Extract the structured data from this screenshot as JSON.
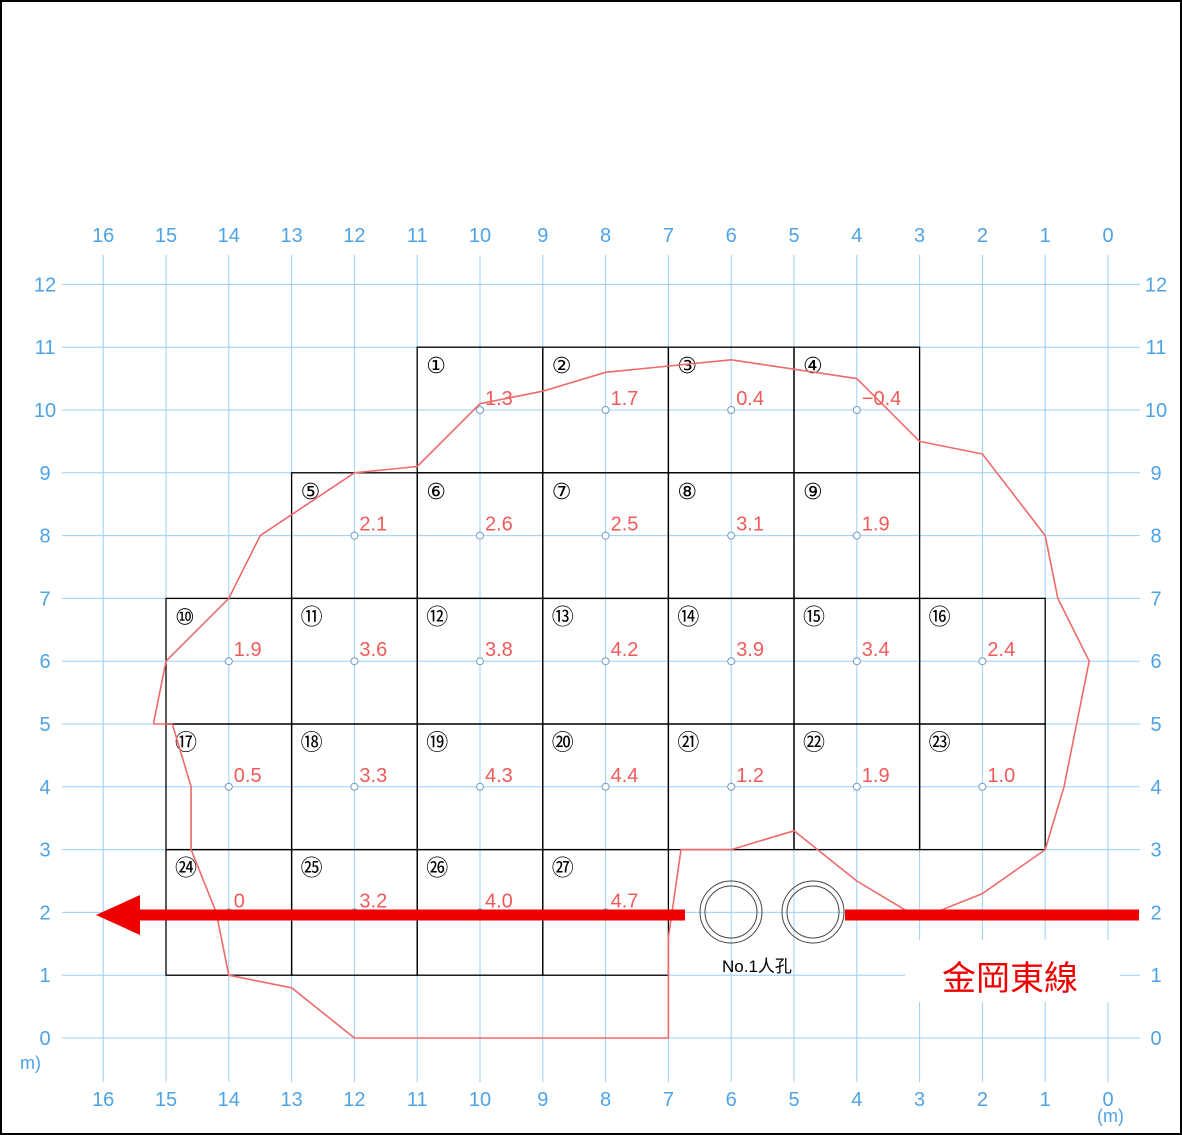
{
  "diagram": {
    "x_ticks": [
      "16",
      "15",
      "14",
      "13",
      "12",
      "11",
      "10",
      "9",
      "8",
      "7",
      "6",
      "5",
      "4",
      "3",
      "2",
      "1",
      "0"
    ],
    "y_ticks": [
      "12",
      "11",
      "10",
      "9",
      "8",
      "7",
      "6",
      "5",
      "4",
      "3",
      "2",
      "1",
      "0"
    ],
    "unit_left": "m)",
    "unit_right": "(m)",
    "cells": [
      {
        "label": "①",
        "value": "1.3",
        "gx": 11,
        "gy": 11
      },
      {
        "label": "②",
        "value": "1.7",
        "gx": 9,
        "gy": 11
      },
      {
        "label": "③",
        "value": "0.4",
        "gx": 7,
        "gy": 11
      },
      {
        "label": "④",
        "value": "−0.4",
        "gx": 5,
        "gy": 11
      },
      {
        "label": "⑤",
        "value": "2.1",
        "gx": 13,
        "gy": 9
      },
      {
        "label": "⑥",
        "value": "2.6",
        "gx": 11,
        "gy": 9
      },
      {
        "label": "⑦",
        "value": "2.5",
        "gx": 9,
        "gy": 9
      },
      {
        "label": "⑧",
        "value": "3.1",
        "gx": 7,
        "gy": 9
      },
      {
        "label": "⑨",
        "value": "1.9",
        "gx": 5,
        "gy": 9
      },
      {
        "label": "⑩",
        "value": "1.9",
        "gx": 15,
        "gy": 7
      },
      {
        "label": "⑪",
        "value": "3.6",
        "gx": 13,
        "gy": 7
      },
      {
        "label": "⑫",
        "value": "3.8",
        "gx": 11,
        "gy": 7
      },
      {
        "label": "⑬",
        "value": "4.2",
        "gx": 9,
        "gy": 7
      },
      {
        "label": "⑭",
        "value": "3.9",
        "gx": 7,
        "gy": 7
      },
      {
        "label": "⑮",
        "value": "3.4",
        "gx": 5,
        "gy": 7
      },
      {
        "label": "⑯",
        "value": "2.4",
        "gx": 3,
        "gy": 7
      },
      {
        "label": "⑰",
        "value": "0.5",
        "gx": 15,
        "gy": 5
      },
      {
        "label": "⑱",
        "value": "3.3",
        "gx": 13,
        "gy": 5
      },
      {
        "label": "⑲",
        "value": "4.3",
        "gx": 11,
        "gy": 5
      },
      {
        "label": "⑳",
        "value": "4.4",
        "gx": 9,
        "gy": 5
      },
      {
        "label": "㉑",
        "value": "1.2",
        "gx": 7,
        "gy": 5
      },
      {
        "label": "㉒",
        "value": "1.9",
        "gx": 5,
        "gy": 5
      },
      {
        "label": "㉓",
        "value": "1.0",
        "gx": 3,
        "gy": 5
      },
      {
        "label": "㉔",
        "value": "0",
        "gx": 15,
        "gy": 3
      },
      {
        "label": "㉕",
        "value": "3.2",
        "gx": 13,
        "gy": 3
      },
      {
        "label": "㉖",
        "value": "4.0",
        "gx": 11,
        "gy": 3
      },
      {
        "label": "㉗",
        "value": "4.7",
        "gx": 9,
        "gy": 3
      }
    ],
    "outline_points": [
      [
        15.2,
        5
      ],
      [
        15,
        6
      ],
      [
        14,
        7
      ],
      [
        13.5,
        8
      ],
      [
        12,
        9
      ],
      [
        11,
        9.1
      ],
      [
        10,
        10.1
      ],
      [
        9,
        10.3
      ],
      [
        8,
        10.6
      ],
      [
        6,
        10.8
      ],
      [
        4,
        10.5
      ],
      [
        3,
        9.5
      ],
      [
        2,
        9.3
      ],
      [
        1,
        8
      ],
      [
        0.8,
        7
      ],
      [
        0.3,
        6
      ],
      [
        0.5,
        5
      ],
      [
        0.7,
        4
      ],
      [
        1,
        3
      ],
      [
        2,
        2.3
      ],
      [
        3,
        1.9
      ],
      [
        4,
        2.5
      ],
      [
        5,
        3.3
      ],
      [
        6,
        3
      ],
      [
        6.8,
        3
      ],
      [
        7,
        1.6
      ],
      [
        7,
        0
      ],
      [
        12,
        0
      ],
      [
        13,
        0.8
      ],
      [
        14,
        1
      ],
      [
        14.2,
        2
      ],
      [
        14.6,
        3
      ],
      [
        14.6,
        4
      ],
      [
        14.9,
        5
      ],
      [
        15.2,
        5
      ]
    ],
    "manhole_label": "No.1人孔",
    "pipeline_label": "金岡東線",
    "colors": {
      "grid": "#9ccff5",
      "axis_text": "#4ea3e6",
      "value_text": "#f05a5a",
      "outline": "#f06a6a",
      "pipeline": "#ee0000"
    }
  }
}
